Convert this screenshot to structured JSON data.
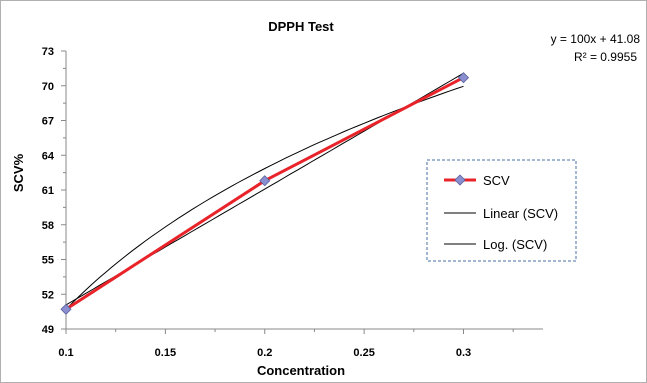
{
  "chart_data": {
    "type": "line",
    "title": "DPPH Test",
    "xlabel": "Concentration",
    "ylabel": "SCV%",
    "xlim": [
      0.1,
      0.34
    ],
    "ylim": [
      49,
      73
    ],
    "x_ticks": [
      0.1,
      0.15,
      0.2,
      0.25,
      0.3
    ],
    "x_tick_labels": [
      "0.1",
      "0.15",
      "0.2",
      "0.25",
      "0.3"
    ],
    "y_ticks": [
      49,
      52,
      55,
      58,
      61,
      64,
      67,
      70,
      73
    ],
    "y_tick_labels": [
      "49",
      "52",
      "55",
      "58",
      "61",
      "64",
      "67",
      "70",
      "73"
    ],
    "grid": false,
    "series": [
      {
        "name": "SCV",
        "x": [
          0.1,
          0.2,
          0.3
        ],
        "y": [
          50.7,
          61.8,
          70.7
        ],
        "color": "#e8232a",
        "marker": "diamond",
        "marker_color": "#8a8fcf"
      }
    ],
    "trendlines": [
      {
        "name": "Linear (SCV)",
        "kind": "linear",
        "slope": 100,
        "intercept": 41.08,
        "color": "#000000"
      },
      {
        "name": "Log. (SCV)",
        "kind": "log",
        "coef": 17.52,
        "intercept": 91.05,
        "color": "#000000"
      }
    ],
    "annotations": {
      "equation": "y = 100x + 41.08",
      "r_squared": "R² = 0.9955"
    },
    "legend": {
      "placement": "right",
      "entries": [
        "SCV",
        "Linear (SCV)",
        "Log. (SCV)"
      ],
      "border_color": "#4a6fa5"
    }
  }
}
